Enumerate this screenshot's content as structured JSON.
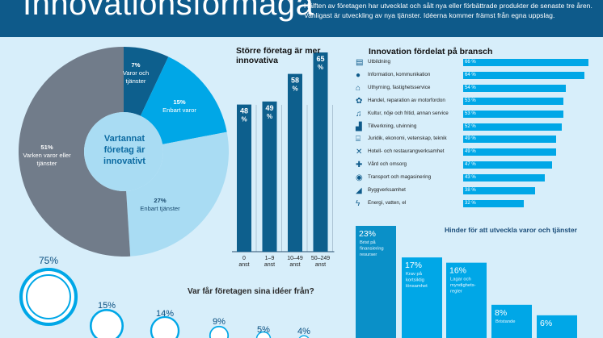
{
  "header": {
    "title": "Innovationsförmåga",
    "intro": "Hälften av företagen har utvecklat och sålt nya eller förbättrade produkter de senaste tre åren. Vanligast är utveckling av nya tjänster. Idéerna kommer främst från egna uppslag."
  },
  "colors": {
    "header": "#0e5a8a",
    "accent": "#00a7e7",
    "background": "#d7eefa"
  },
  "chart_data": [
    {
      "type": "pie",
      "title": "Vartannat företag är innovativt",
      "slices": [
        {
          "label": "Varor och tjänster",
          "value": 7,
          "pct_label": "7%",
          "color": "#0d5f8d"
        },
        {
          "label": "Enbart varor",
          "value": 15,
          "pct_label": "15%",
          "color": "#00a7e7"
        },
        {
          "label": "Enbart tjänster",
          "value": 27,
          "pct_label": "27%",
          "color": "#a9dcf3"
        },
        {
          "label": "Varken varor eller tjänster",
          "value": 51,
          "pct_label": "51%",
          "color": "#717c8a"
        }
      ]
    },
    {
      "type": "bar",
      "title": "Större företag är mer innovativa",
      "categories": [
        "0 anst",
        "1–9 anst",
        "10–49 anst",
        "50–249 anst"
      ],
      "values": [
        48,
        49,
        58,
        65
      ],
      "value_labels": [
        "48 %",
        "49 %",
        "58 %",
        "65 %"
      ],
      "ylim": [
        0,
        70
      ]
    },
    {
      "type": "bar",
      "orientation": "horizontal",
      "title": "Innovation fördelat på bransch",
      "categories": [
        "Utbildning",
        "Information, kommunikation",
        "Uthyrning, fastighetsservice",
        "Handel, reparation av motorfordon",
        "Kultur, nöje och fritid, annan service",
        "Tillverkning, utvinning",
        "Juridik, ekonomi, vetenskap, teknik",
        "Hotell- och restaurangverksamhet",
        "Vård och omsorg",
        "Transport och magasinering",
        "Byggverksamhet",
        "Energi, vatten, el"
      ],
      "values": [
        66,
        64,
        54,
        53,
        53,
        52,
        49,
        49,
        47,
        43,
        38,
        32
      ],
      "value_labels": [
        "66 %",
        "64 %",
        "54 %",
        "53 %",
        "53 %",
        "52 %",
        "49 %",
        "49 %",
        "47 %",
        "43 %",
        "38 %",
        "32 %"
      ],
      "icons": [
        "book-icon",
        "speech-bubble-icon",
        "house-icon",
        "gear-icon",
        "music-note-icon",
        "factory-icon",
        "columns-icon",
        "cutlery-icon",
        "medical-cross-icon",
        "globe-icon",
        "trowel-icon",
        "lightning-icon"
      ],
      "xlim": [
        0,
        70
      ]
    },
    {
      "type": "bar",
      "title": "Hinder för att utveckla varor och tjänster",
      "categories": [
        "Brist på finansiering resurser",
        "Krav på kortsiktig lönsamhet",
        "Lagar och myndighets-regler",
        "Bristande",
        ""
      ],
      "values": [
        23,
        17,
        16,
        8,
        6
      ],
      "value_labels": [
        "23%",
        "17%",
        "16%",
        "8%",
        "6%"
      ],
      "ylim": [
        0,
        25
      ]
    },
    {
      "type": "bar",
      "title": "Var får företagen sina idéer från?",
      "values": [
        75,
        15,
        14,
        9,
        5,
        4
      ],
      "value_labels": [
        "75%",
        "15%",
        "14%",
        "9%",
        "5%",
        "4%"
      ]
    }
  ]
}
